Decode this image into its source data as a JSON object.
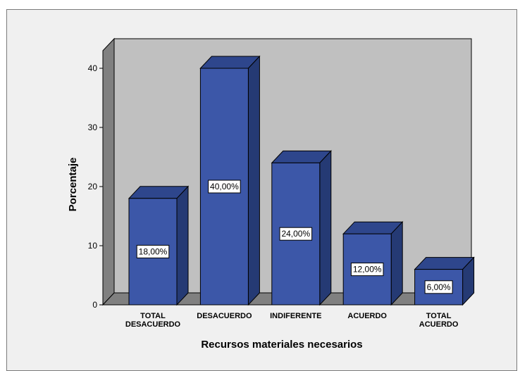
{
  "chart_data": {
    "type": "bar",
    "categories": [
      "TOTAL\nDESACUERDO",
      "DESACUERDO",
      "INDIFERENTE",
      "ACUERDO",
      "TOTAL\nACUERDO"
    ],
    "values": [
      18,
      40,
      24,
      12,
      6
    ],
    "data_labels": [
      "18,00%",
      "40,00%",
      "24,00%",
      "12,00%",
      "6,00%"
    ],
    "yticks": [
      "0",
      "10",
      "20",
      "30",
      "40"
    ],
    "ytick_values": [
      0,
      10,
      20,
      30,
      40
    ],
    "ylim": [
      0,
      40
    ],
    "xlabel": "Recursos materiales necesarios",
    "ylabel": "Porcentaje",
    "grid": false,
    "style": "3d-bar",
    "colors": {
      "bar_front": "#3c57a8",
      "bar_side": "#253a74",
      "bar_top": "#2e468c",
      "back_wall": "#c0c0c0",
      "side_wall": "#808080",
      "floor": "#808080",
      "background": "#f0f0f0"
    }
  }
}
